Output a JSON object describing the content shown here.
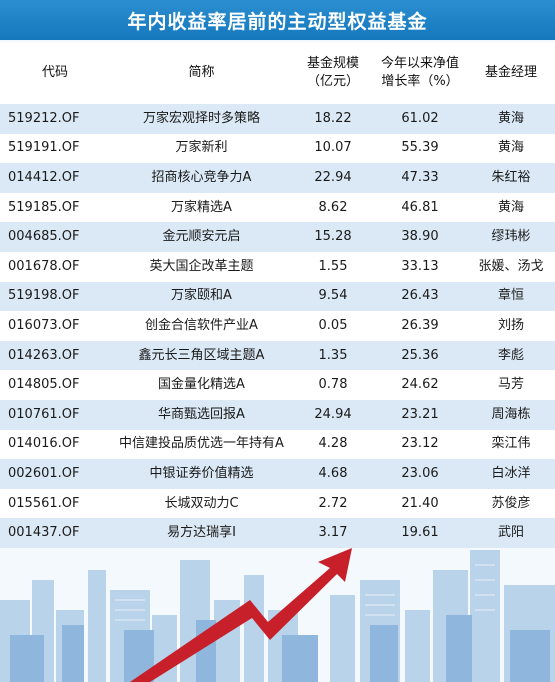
{
  "title": "年内收益率居前的主动型权益基金",
  "headers": {
    "code": "代码",
    "name": "简称",
    "scale_line1": "基金规模",
    "scale_line2": "（亿元）",
    "growth_line1": "今年以来净值",
    "growth_line2": "增长率（%）",
    "manager": "基金经理"
  },
  "rows": [
    {
      "code": "519212.OF",
      "name": "万家宏观择时多策略",
      "scale": "18.22",
      "growth": "61.02",
      "manager": "黄海"
    },
    {
      "code": "519191.OF",
      "name": "万家新利",
      "scale": "10.07",
      "growth": "55.39",
      "manager": "黄海"
    },
    {
      "code": "014412.OF",
      "name": "招商核心竞争力A",
      "scale": "22.94",
      "growth": "47.33",
      "manager": "朱红裕"
    },
    {
      "code": "519185.OF",
      "name": "万家精选A",
      "scale": "8.62",
      "growth": "46.81",
      "manager": "黄海"
    },
    {
      "code": "004685.OF",
      "name": "金元顺安元启",
      "scale": "15.28",
      "growth": "38.90",
      "manager": "缪玮彬"
    },
    {
      "code": "001678.OF",
      "name": "英大国企改革主题",
      "scale": "1.55",
      "growth": "33.13",
      "manager": "张媛、汤戈"
    },
    {
      "code": "519198.OF",
      "name": "万家颐和A",
      "scale": "9.54",
      "growth": "26.43",
      "manager": "章恒"
    },
    {
      "code": "016073.OF",
      "name": "创金合信软件产业A",
      "scale": "0.05",
      "growth": "26.39",
      "manager": "刘扬"
    },
    {
      "code": "014263.OF",
      "name": "鑫元长三角区域主题A",
      "scale": "1.35",
      "growth": "25.36",
      "manager": "李彪"
    },
    {
      "code": "014805.OF",
      "name": "国金量化精选A",
      "scale": "0.78",
      "growth": "24.62",
      "manager": "马芳"
    },
    {
      "code": "010761.OF",
      "name": "华商甄选回报A",
      "scale": "24.94",
      "growth": "23.21",
      "manager": "周海栋"
    },
    {
      "code": "014016.OF",
      "name": "中信建投品质优选一年持有A",
      "scale": "4.28",
      "growth": "23.12",
      "manager": "栾江伟"
    },
    {
      "code": "002601.OF",
      "name": "中银证券价值精选",
      "scale": "4.68",
      "growth": "23.06",
      "manager": "白冰洋"
    },
    {
      "code": "015561.OF",
      "name": "长城双动力C",
      "scale": "2.72",
      "growth": "21.40",
      "manager": "苏俊彦"
    },
    {
      "code": "001437.OF",
      "name": "易方达瑞享I",
      "scale": "3.17",
      "growth": "19.61",
      "manager": "武阳"
    }
  ],
  "colors": {
    "title_bg": "#1677bd",
    "row_odd": "#dbe9f6",
    "row_even": "#ffffff",
    "arrow": "#c8202a",
    "buildings": "#9fc3e4"
  },
  "decoration": [
    "city-skyline",
    "rising-arrow-icon"
  ]
}
